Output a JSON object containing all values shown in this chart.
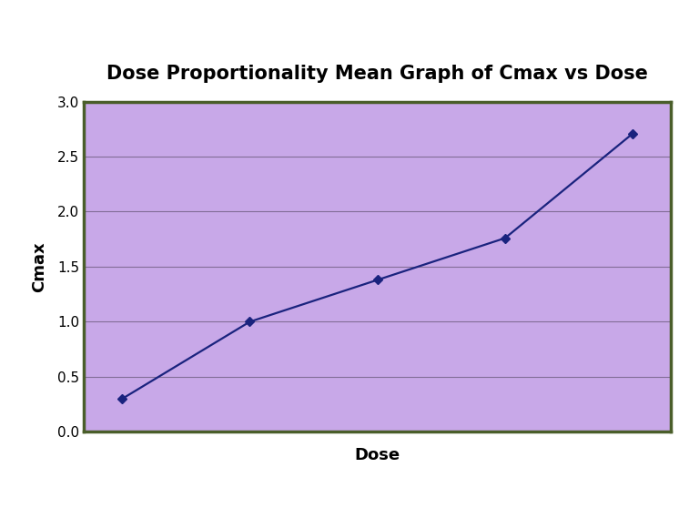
{
  "title": "Dose Proportionality Mean Graph of Cmax vs Dose",
  "xlabel": "Dose",
  "ylabel": "Cmax",
  "x_values": [
    1,
    2,
    3,
    4,
    5
  ],
  "y_values": [
    0.3,
    1.0,
    1.38,
    1.76,
    2.71
  ],
  "ylim": [
    0,
    3
  ],
  "yticks": [
    0,
    0.5,
    1.0,
    1.5,
    2.0,
    2.5,
    3.0
  ],
  "line_color": "#1a237e",
  "marker_color": "#1a237e",
  "bg_color": "#c8a8e8",
  "plot_border_color": "#4a5e2a",
  "fig_bg_color": "#ffffff",
  "title_fontsize": 15,
  "label_fontsize": 13,
  "tick_fontsize": 11,
  "grid_color": "#000000",
  "grid_linestyle": "-",
  "grid_alpha": 0.35,
  "grid_linewidth": 0.8
}
